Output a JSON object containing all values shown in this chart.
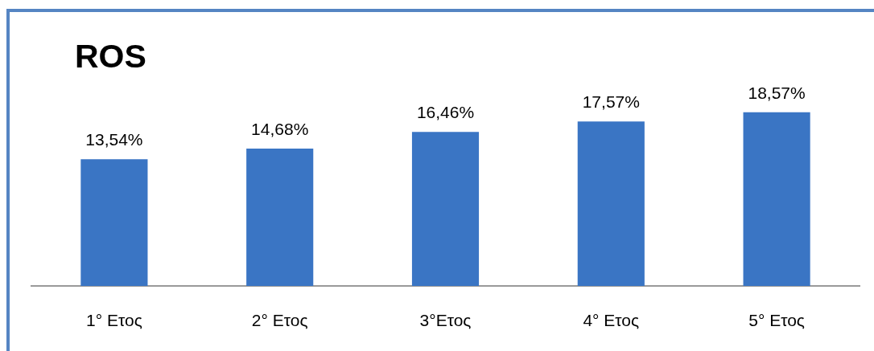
{
  "chart_data": {
    "type": "bar",
    "title": "ROS",
    "categories": [
      "1° Ετος",
      "2° Ετος",
      "3°Ετος",
      "4° Ετος",
      "5° Ετος"
    ],
    "values": [
      13.54,
      14.68,
      16.46,
      17.57,
      18.57
    ],
    "value_labels": [
      "13,54%",
      "14,68%",
      "16,46%",
      "17,57%",
      "18,57%"
    ],
    "color": "#3a75c4"
  }
}
